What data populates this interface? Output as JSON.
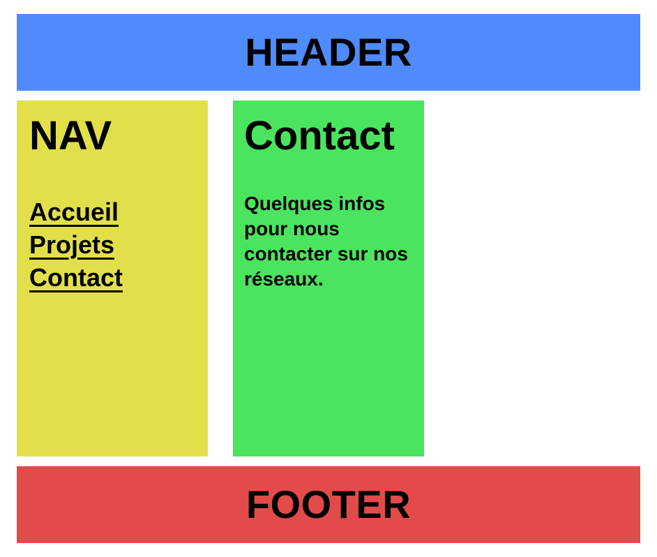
{
  "colors": {
    "header_bg": "#4f8bfd",
    "nav_bg": "#e2e04a",
    "main_bg": "#4be45f",
    "footer_bg": "#e34a4a",
    "text": "#000000"
  },
  "header": {
    "title": "HEADER"
  },
  "nav": {
    "title": "NAV",
    "links": [
      {
        "label": "Accueil"
      },
      {
        "label": "Projets"
      },
      {
        "label": "Contact"
      }
    ]
  },
  "main": {
    "title": "Contact",
    "text": "Quelques infos pour nous contacter sur nos réseaux."
  },
  "footer": {
    "title": "FOOTER"
  }
}
